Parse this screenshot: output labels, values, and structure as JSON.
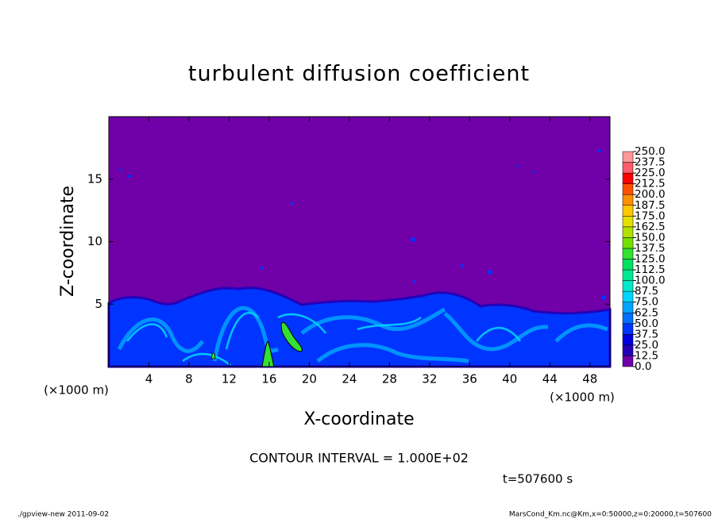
{
  "chart_data": {
    "type": "contour",
    "title": "turbulent diffusion coefficient",
    "x_label": "X-coordinate",
    "y_label": "Z-coordinate",
    "x_unit": "(×1000 m)",
    "y_unit": "(×1000 m)",
    "xlim": [
      0,
      50
    ],
    "xticks": [
      4,
      8,
      12,
      16,
      20,
      24,
      28,
      32,
      36,
      40,
      44,
      48
    ],
    "ylim": [
      0,
      20
    ],
    "yticks": [
      5,
      10,
      15
    ],
    "colorbar": {
      "ticks": [
        {
          "value": 0,
          "label": "0.0"
        },
        {
          "value": 12.5,
          "label": "12.5"
        },
        {
          "value": 25,
          "label": "25.0"
        },
        {
          "value": 37.5,
          "label": "37.5"
        },
        {
          "value": 50,
          "label": "50.0"
        },
        {
          "value": 62.5,
          "label": "62.5"
        },
        {
          "value": 75,
          "label": "75.0"
        },
        {
          "value": 87.5,
          "label": "87.5"
        },
        {
          "value": 100,
          "label": "100.0"
        },
        {
          "value": 112.5,
          "label": "112.5"
        },
        {
          "value": 125,
          "label": "125.0"
        },
        {
          "value": 137.5,
          "label": "137.5"
        },
        {
          "value": 150,
          "label": "150.0"
        },
        {
          "value": 162.5,
          "label": "162.5"
        },
        {
          "value": 175,
          "label": "175.0"
        },
        {
          "value": 187.5,
          "label": "187.5"
        },
        {
          "value": 200,
          "label": "200.0"
        },
        {
          "value": 212.5,
          "label": "212.5"
        },
        {
          "value": 225,
          "label": "225.0"
        },
        {
          "value": 237.5,
          "label": "237.5"
        },
        {
          "value": 250,
          "label": "250.0"
        }
      ],
      "colors": [
        "#7000a8",
        "#2400b8",
        "#0000e0",
        "#0034ff",
        "#0070ff",
        "#00a4ff",
        "#00d4ff",
        "#00e8cc",
        "#00e894",
        "#00e060",
        "#34e030",
        "#74e000",
        "#b0e000",
        "#e4e000",
        "#ffc800",
        "#ff9000",
        "#ff5000",
        "#ff0000",
        "#ff5c6c",
        "#ff9898"
      ]
    },
    "contour_interval_label": "CONTOUR INTERVAL = 1.000E+02",
    "time_label": "t=507600 s"
  },
  "footer": {
    "left": "./gpview-new   2011-09-02",
    "right": "MarsCond_Km.nc@Km,x=0:50000,z=0:20000,t=507600"
  }
}
